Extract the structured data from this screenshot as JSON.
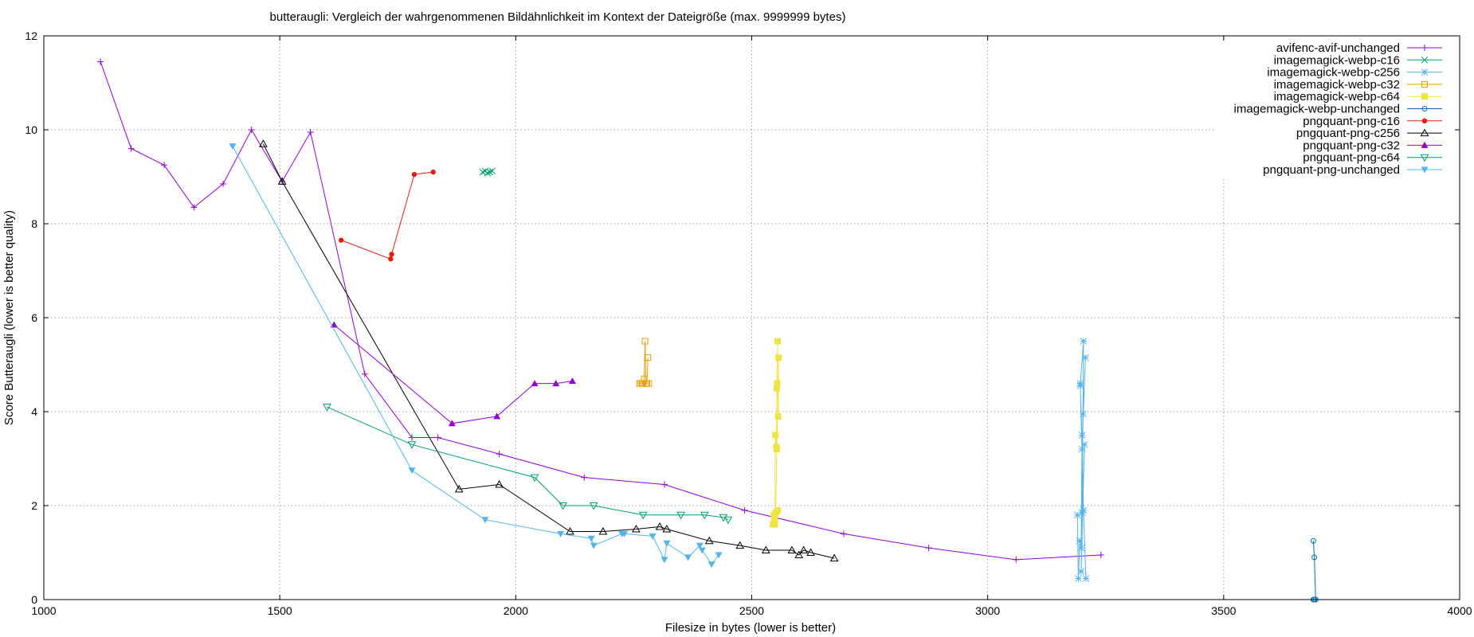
{
  "chart_data": {
    "type": "line",
    "title": "butteraugli: Vergleich der wahrgenommenen Bildähnlichkeit im Kontext der Dateigröße (max. 9999999 bytes)",
    "xlabel": "Filesize in bytes (lower is better)",
    "ylabel": "Score Butteraugli (lower is better quality)",
    "xlim": [
      1000,
      4000
    ],
    "ylim": [
      0,
      12
    ],
    "xticks": [
      1000,
      1500,
      2000,
      2500,
      3000,
      3500,
      4000
    ],
    "yticks": [
      0,
      2,
      4,
      6,
      8,
      10,
      12
    ],
    "grid": true,
    "legend_position": "top-right",
    "series": [
      {
        "name": "avifenc-avif-unchanged",
        "color": "#9400d3",
        "marker": "plus",
        "x": [
          1120,
          1185,
          1255,
          1318,
          1380,
          1440,
          1505,
          1565,
          1680,
          1780,
          1835,
          1965,
          2145,
          2315,
          2485,
          2695,
          2875,
          3060,
          3240
        ],
        "y": [
          11.45,
          9.6,
          9.25,
          8.35,
          8.85,
          10.0,
          8.9,
          9.95,
          4.8,
          3.45,
          3.45,
          3.1,
          2.6,
          2.45,
          1.9,
          1.4,
          1.1,
          0.85,
          0.95
        ]
      },
      {
        "name": "imagemagick-webp-c16",
        "color": "#009e73",
        "marker": "cross",
        "x": [
          1930,
          1935,
          1940,
          1945,
          1950
        ],
        "y": [
          9.1,
          9.12,
          9.08,
          9.1,
          9.12
        ]
      },
      {
        "name": "imagemagick-webp-c256",
        "color": "#56b4e9",
        "marker": "star",
        "x": [
          3190,
          3192,
          3195,
          3198,
          3200,
          3196,
          3203,
          3200,
          3205,
          3198,
          3202,
          3207,
          3200,
          3196,
          3203,
          3208
        ],
        "y": [
          1.8,
          0.45,
          1.25,
          1.1,
          3.5,
          4.55,
          5.5,
          1.85,
          3.3,
          0.6,
          3.95,
          5.15,
          3.2,
          4.6,
          1.9,
          0.45
        ]
      },
      {
        "name": "imagemagick-webp-c32",
        "color": "#e69f00",
        "marker": "square-open",
        "x": [
          2262,
          2265,
          2268,
          2270,
          2272,
          2274,
          2276,
          2278,
          2280,
          2278,
          2282
        ],
        "y": [
          4.6,
          4.6,
          4.6,
          4.6,
          4.7,
          5.5,
          4.6,
          4.6,
          5.15,
          4.6,
          4.6
        ]
      },
      {
        "name": "imagemagick-webp-c64",
        "color": "#f0e442",
        "marker": "square-filled",
        "x": [
          2545,
          2547,
          2549,
          2550,
          2552,
          2553,
          2555,
          2554,
          2556,
          2557,
          2553,
          2551,
          2549,
          2548,
          2555
        ],
        "y": [
          1.6,
          1.8,
          1.65,
          3.5,
          3.25,
          4.5,
          5.5,
          4.6,
          3.9,
          5.15,
          3.2,
          1.85,
          1.6,
          1.75,
          1.9
        ]
      },
      {
        "name": "imagemagick-webp-unchanged",
        "color": "#0072b2",
        "marker": "circle-open",
        "x": [
          3690,
          3692,
          3695,
          3692,
          3690
        ],
        "y": [
          1.25,
          0.9,
          0.0,
          0.0,
          0.0
        ]
      },
      {
        "name": "pngquant-png-c16",
        "color": "#e51e10",
        "marker": "circle-filled",
        "x": [
          1630,
          1735,
          1737,
          1785,
          1825
        ],
        "y": [
          7.65,
          7.25,
          7.35,
          9.05,
          9.1
        ]
      },
      {
        "name": "pngquant-png-c256",
        "color": "#000000",
        "marker": "triangle-open",
        "x": [
          1465,
          1505,
          1880,
          1965,
          2115,
          2185,
          2255,
          2305,
          2320,
          2410,
          2475,
          2530,
          2585,
          2600,
          2610,
          2625,
          2675
        ],
        "y": [
          9.7,
          8.9,
          2.35,
          2.45,
          1.45,
          1.45,
          1.5,
          1.55,
          1.5,
          1.25,
          1.15,
          1.05,
          1.05,
          0.95,
          1.05,
          1.0,
          0.88
        ]
      },
      {
        "name": "pngquant-png-c32",
        "color": "#9400d3",
        "marker": "triangle-filled",
        "x": [
          1615,
          1865,
          1960,
          2040,
          2085,
          2120
        ],
        "y": [
          5.85,
          3.75,
          3.9,
          4.6,
          4.6,
          4.65
        ]
      },
      {
        "name": "pngquant-png-c64",
        "color": "#009e73",
        "marker": "triangle-down-open",
        "x": [
          1600,
          1780,
          2040,
          2100,
          2165,
          2270,
          2350,
          2400,
          2440,
          2450
        ],
        "y": [
          4.1,
          3.3,
          2.6,
          2.0,
          2.0,
          1.8,
          1.8,
          1.8,
          1.75,
          1.7
        ]
      },
      {
        "name": "pngquant-png-unchanged",
        "color": "#56b4e9",
        "marker": "triangle-down-filled",
        "x": [
          1400,
          1780,
          1935,
          2095,
          2160,
          2165,
          2225,
          2230,
          2290,
          2315,
          2320,
          2365,
          2390,
          2395,
          2415,
          2430
        ],
        "y": [
          9.65,
          2.75,
          1.7,
          1.4,
          1.3,
          1.15,
          1.4,
          1.4,
          1.35,
          0.85,
          1.2,
          0.9,
          1.15,
          1.05,
          0.75,
          0.95
        ]
      }
    ]
  }
}
